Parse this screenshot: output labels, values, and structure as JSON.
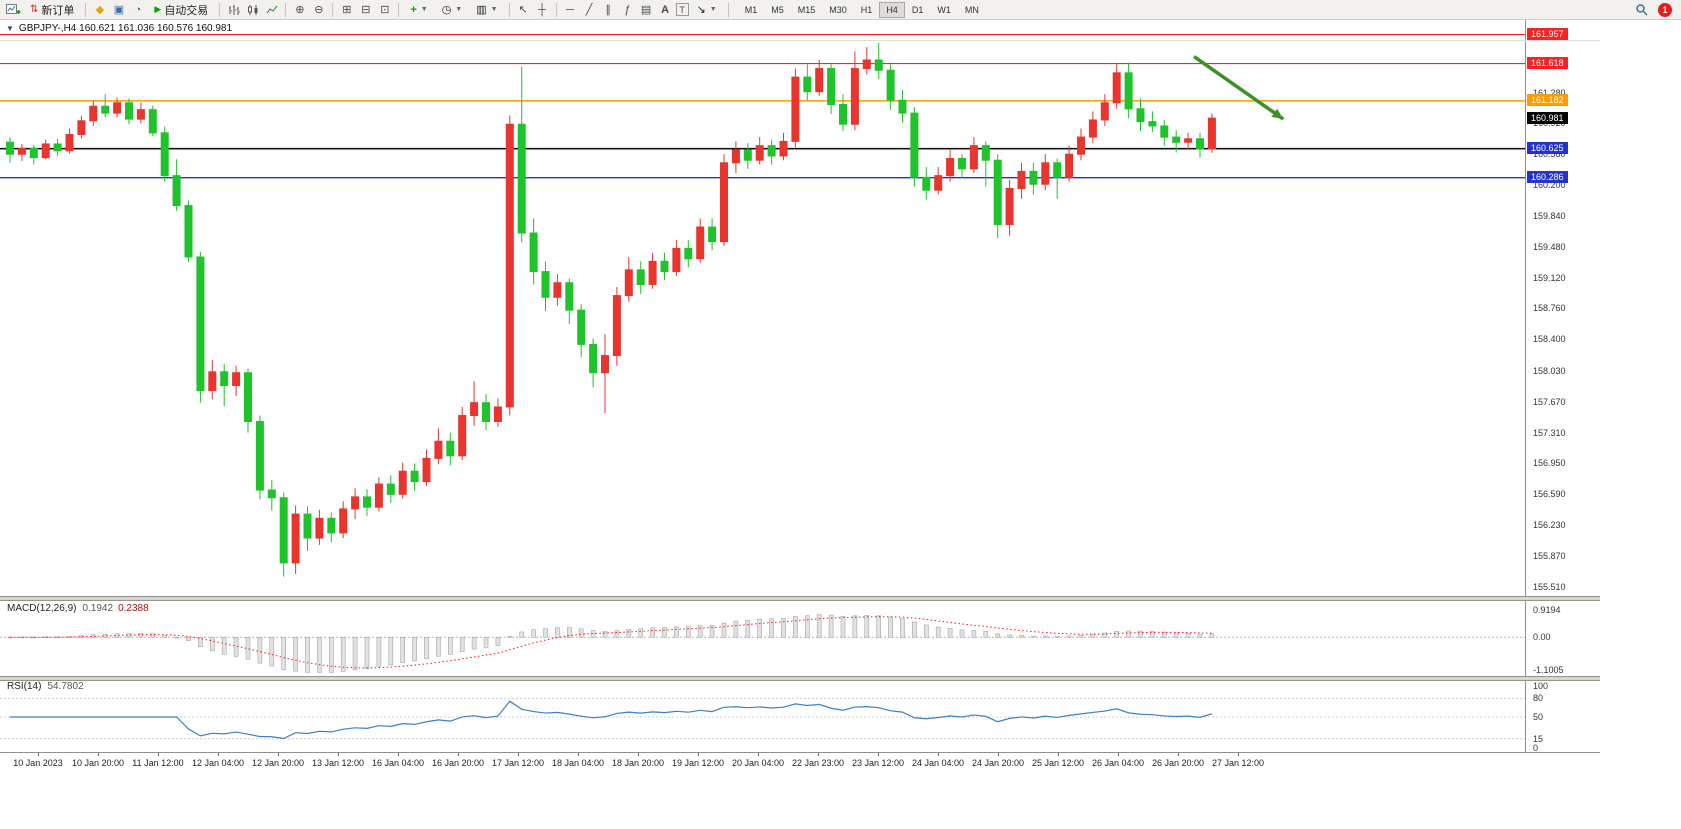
{
  "toolbar": {
    "new_order_label": "新订单",
    "auto_trading_label": "自动交易",
    "text_tool_label": "A",
    "label_tool_label": "T",
    "timeframes": [
      "M1",
      "M5",
      "M15",
      "M30",
      "H1",
      "H4",
      "D1",
      "W1",
      "MN"
    ],
    "active_timeframe": "H4",
    "notification_count": "1"
  },
  "chart": {
    "title": "GBPJPY-,H4 160.621 161.036 160.576 160.981",
    "symbol": "GBPJPY-",
    "period": "H4",
    "open": "160.621",
    "high": "161.036",
    "low": "160.576",
    "close": "160.981"
  },
  "chart_data": {
    "type": "candlestick",
    "symbol": "GBPJPY-",
    "timeframe": "H4",
    "up_color": "#e8352e",
    "down_color": "#1fc32b",
    "price_axis_range": [
      155.38,
      162.08
    ],
    "current_price": 160.981,
    "current_price_label_bg": "#000000",
    "h_lines": [
      {
        "price": 161.957,
        "line_color": "#ff2020",
        "label_bg": "#ff2020",
        "width": 1.1
      },
      {
        "price": 161.618,
        "line_color": "#ff2020",
        "label_bg": "#ff2020",
        "width": 1.2
      },
      {
        "price": 161.182,
        "line_color": "#ff9c00",
        "label_bg": "#ff9c00",
        "width": 1.5
      },
      {
        "price": 160.625,
        "line_color": "#151515",
        "label_bg": "#2333cc",
        "width": 1.6
      },
      {
        "price": 160.286,
        "line_color": "#2333cc",
        "label_bg": "#2333cc",
        "width": 1.4
      }
    ],
    "price_axis_ticks": [
      "161.280",
      "160.920",
      "160.560",
      "160.200",
      "159.840",
      "159.480",
      "159.120",
      "158.760",
      "158.400",
      "158.030",
      "157.670",
      "157.310",
      "156.950",
      "156.590",
      "156.230",
      "155.870",
      "155.510"
    ],
    "time_labels": [
      "10 Jan 2023",
      "10 Jan 20:00",
      "11 Jan 12:00",
      "12 Jan 04:00",
      "12 Jan 20:00",
      "13 Jan 12:00",
      "16 Jan 04:00",
      "16 Jan 20:00",
      "17 Jan 12:00",
      "18 Jan 04:00",
      "18 Jan 20:00",
      "19 Jan 12:00",
      "20 Jan 04:00",
      "22 Jan 23:00",
      "23 Jan 12:00",
      "24 Jan 04:00",
      "24 Jan 20:00",
      "25 Jan 12:00",
      "26 Jan 04:00",
      "26 Jan 20:00",
      "27 Jan 12:00"
    ],
    "candles": [
      [
        160.7,
        160.76,
        160.46,
        160.56
      ],
      [
        160.56,
        160.68,
        160.48,
        160.63
      ],
      [
        160.63,
        160.67,
        160.44,
        160.52
      ],
      [
        160.52,
        160.73,
        160.5,
        160.68
      ],
      [
        160.68,
        160.74,
        160.54,
        160.6
      ],
      [
        160.6,
        160.86,
        160.57,
        160.79
      ],
      [
        160.79,
        161.01,
        160.74,
        160.95
      ],
      [
        160.95,
        161.18,
        160.89,
        161.12
      ],
      [
        161.12,
        161.26,
        160.99,
        161.04
      ],
      [
        161.04,
        161.22,
        160.99,
        161.16
      ],
      [
        161.16,
        161.21,
        160.91,
        160.97
      ],
      [
        160.97,
        161.16,
        160.92,
        161.08
      ],
      [
        161.08,
        161.13,
        160.77,
        160.81
      ],
      [
        160.81,
        160.88,
        160.24,
        160.31
      ],
      [
        160.31,
        160.5,
        159.9,
        159.96
      ],
      [
        159.96,
        160.02,
        159.3,
        159.36
      ],
      [
        159.36,
        159.42,
        157.66,
        157.8
      ],
      [
        157.8,
        158.16,
        157.7,
        158.02
      ],
      [
        158.02,
        158.11,
        157.62,
        157.86
      ],
      [
        157.86,
        158.09,
        157.74,
        158.01
      ],
      [
        158.01,
        158.06,
        157.31,
        157.44
      ],
      [
        157.44,
        157.51,
        156.53,
        156.64
      ],
      [
        156.64,
        156.76,
        156.4,
        156.55
      ],
      [
        156.55,
        156.61,
        155.63,
        155.79
      ],
      [
        155.79,
        156.46,
        155.66,
        156.36
      ],
      [
        156.36,
        156.45,
        155.93,
        156.08
      ],
      [
        156.08,
        156.41,
        156.0,
        156.31
      ],
      [
        156.31,
        156.38,
        156.03,
        156.14
      ],
      [
        156.14,
        156.51,
        156.08,
        156.42
      ],
      [
        156.42,
        156.66,
        156.3,
        156.56
      ],
      [
        156.56,
        156.65,
        156.34,
        156.44
      ],
      [
        156.44,
        156.79,
        156.39,
        156.71
      ],
      [
        156.71,
        156.81,
        156.49,
        156.59
      ],
      [
        156.59,
        156.96,
        156.54,
        156.86
      ],
      [
        156.86,
        156.95,
        156.63,
        156.74
      ],
      [
        156.74,
        157.11,
        156.69,
        157.01
      ],
      [
        157.01,
        157.36,
        156.94,
        157.21
      ],
      [
        157.21,
        157.31,
        156.93,
        157.04
      ],
      [
        157.04,
        157.61,
        156.99,
        157.51
      ],
      [
        157.51,
        157.91,
        157.39,
        157.66
      ],
      [
        157.66,
        157.76,
        157.34,
        157.44
      ],
      [
        157.44,
        157.71,
        157.38,
        157.61
      ],
      [
        157.61,
        161.01,
        157.51,
        160.91
      ],
      [
        160.91,
        161.58,
        159.53,
        159.64
      ],
      [
        159.64,
        159.81,
        159.04,
        159.19
      ],
      [
        159.19,
        159.31,
        158.73,
        158.89
      ],
      [
        158.89,
        159.16,
        158.79,
        159.06
      ],
      [
        159.06,
        159.11,
        158.58,
        158.74
      ],
      [
        158.74,
        158.81,
        158.19,
        158.34
      ],
      [
        158.34,
        158.41,
        157.84,
        158.01
      ],
      [
        158.01,
        158.46,
        157.54,
        158.21
      ],
      [
        158.21,
        159.01,
        158.09,
        158.91
      ],
      [
        158.91,
        159.36,
        158.84,
        159.21
      ],
      [
        159.21,
        159.31,
        158.93,
        159.04
      ],
      [
        159.04,
        159.41,
        158.99,
        159.31
      ],
      [
        159.31,
        159.41,
        159.09,
        159.19
      ],
      [
        159.19,
        159.56,
        159.14,
        159.46
      ],
      [
        159.46,
        159.56,
        159.24,
        159.34
      ],
      [
        159.34,
        159.81,
        159.29,
        159.71
      ],
      [
        159.71,
        159.81,
        159.44,
        159.54
      ],
      [
        159.54,
        160.56,
        159.49,
        160.46
      ],
      [
        160.46,
        160.71,
        160.34,
        160.61
      ],
      [
        160.61,
        160.69,
        160.39,
        160.49
      ],
      [
        160.49,
        160.76,
        160.44,
        160.66
      ],
      [
        160.66,
        160.73,
        160.44,
        160.54
      ],
      [
        160.54,
        160.81,
        160.49,
        160.71
      ],
      [
        160.71,
        161.56,
        160.64,
        161.46
      ],
      [
        161.46,
        161.61,
        161.19,
        161.29
      ],
      [
        161.29,
        161.66,
        161.24,
        161.56
      ],
      [
        161.56,
        161.61,
        161.03,
        161.14
      ],
      [
        161.14,
        161.26,
        160.83,
        160.91
      ],
      [
        160.91,
        161.76,
        160.84,
        161.56
      ],
      [
        161.56,
        161.81,
        161.49,
        161.66
      ],
      [
        161.66,
        161.86,
        161.44,
        161.54
      ],
      [
        161.54,
        161.61,
        161.08,
        161.19
      ],
      [
        161.19,
        161.31,
        160.93,
        161.04
      ],
      [
        161.04,
        161.11,
        160.18,
        160.29
      ],
      [
        160.29,
        160.41,
        160.03,
        160.14
      ],
      [
        160.14,
        160.41,
        160.09,
        160.31
      ],
      [
        160.31,
        160.61,
        160.24,
        160.51
      ],
      [
        160.51,
        160.56,
        160.28,
        160.39
      ],
      [
        160.39,
        160.76,
        160.34,
        160.66
      ],
      [
        160.66,
        160.71,
        160.18,
        160.49
      ],
      [
        160.49,
        160.56,
        159.58,
        159.74
      ],
      [
        159.74,
        160.26,
        159.61,
        160.16
      ],
      [
        160.16,
        160.46,
        160.04,
        160.36
      ],
      [
        160.36,
        160.46,
        160.09,
        160.21
      ],
      [
        160.21,
        160.56,
        160.14,
        160.46
      ],
      [
        160.46,
        160.51,
        160.04,
        160.29
      ],
      [
        160.29,
        160.66,
        160.24,
        160.56
      ],
      [
        160.56,
        160.86,
        160.49,
        160.76
      ],
      [
        160.76,
        161.06,
        160.69,
        160.96
      ],
      [
        160.96,
        161.26,
        160.89,
        161.16
      ],
      [
        161.16,
        161.61,
        161.09,
        161.51
      ],
      [
        161.51,
        161.63,
        160.98,
        161.09
      ],
      [
        161.09,
        161.21,
        160.83,
        160.94
      ],
      [
        160.94,
        161.06,
        160.82,
        160.89
      ],
      [
        160.89,
        160.96,
        160.66,
        160.76
      ],
      [
        160.76,
        160.84,
        160.58,
        160.7
      ],
      [
        160.7,
        160.81,
        160.62,
        160.74
      ],
      [
        160.74,
        160.81,
        160.52,
        160.62
      ],
      [
        160.621,
        161.036,
        160.576,
        160.981
      ]
    ],
    "annotation_arrow": {
      "from_bar": 99.5,
      "from_price": 161.7,
      "to_bar": 107,
      "to_price": 160.97,
      "color": "#3f8f28"
    },
    "macd": {
      "label": "MACD(12,26,9)",
      "value_main": "0.1942",
      "value_signal": "0.2388",
      "params": [
        12,
        26,
        9
      ],
      "axis_labels": [
        "0.9194",
        "0.00",
        "-1.1005"
      ],
      "range": [
        -1.1005,
        0.9194
      ],
      "histogram_color": "#e2e2e2",
      "histogram_stroke": "#a6a6a6",
      "signal_color": "#ff1414"
    },
    "rsi": {
      "label": "RSI(14)",
      "value_text": "54.7802",
      "period": 14,
      "axis_labels": [
        "100",
        "80",
        "50",
        "15",
        "0"
      ],
      "levels": [
        80,
        50,
        15
      ],
      "line_color": "#3e7fc1",
      "range": [
        0,
        100
      ]
    }
  }
}
